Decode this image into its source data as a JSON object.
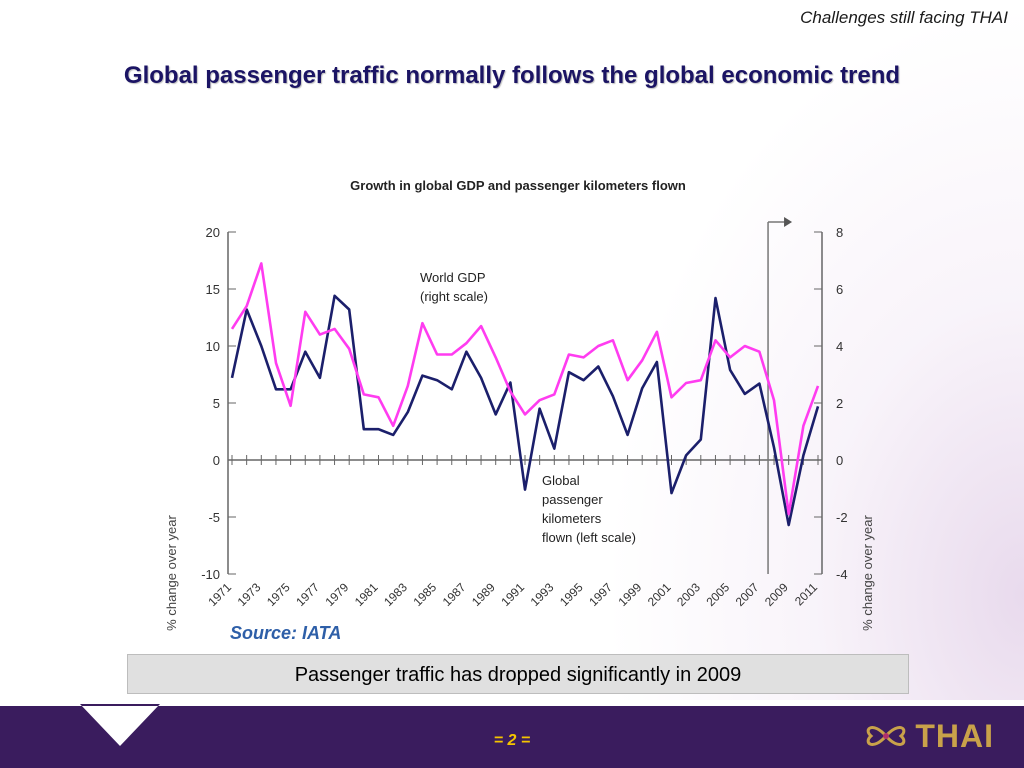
{
  "header": {
    "note": "Challenges still facing THAI",
    "title": "Global passenger traffic normally follows the global economic trend"
  },
  "chart_data": {
    "type": "line",
    "title": "Growth in global GDP and passenger kilometers flown",
    "ylabel_left": "% change over year",
    "ylabel_right": "% change over year",
    "ylim_left": [
      -10,
      20
    ],
    "ylim_right": [
      -4,
      8
    ],
    "yticks_left": [
      "20",
      "15",
      "10",
      "5",
      "0",
      "-5",
      "-10"
    ],
    "yticks_right": [
      "8",
      "6",
      "4",
      "2",
      "0",
      "-2",
      "-4"
    ],
    "x": [
      1971,
      1972,
      1973,
      1974,
      1975,
      1976,
      1977,
      1978,
      1979,
      1980,
      1981,
      1982,
      1983,
      1984,
      1985,
      1986,
      1987,
      1988,
      1989,
      1990,
      1991,
      1992,
      1993,
      1994,
      1995,
      1996,
      1997,
      1998,
      1999,
      2000,
      2001,
      2002,
      2003,
      2004,
      2005,
      2006,
      2007,
      2008,
      2009,
      2010,
      2011
    ],
    "xtick_labels": [
      "1971",
      "1973",
      "1975",
      "1977",
      "1979",
      "1981",
      "1983",
      "1985",
      "1987",
      "1989",
      "1991",
      "1993",
      "1995",
      "1997",
      "1999",
      "2001",
      "2003",
      "2005",
      "2007",
      "2009",
      "2011"
    ],
    "series": [
      {
        "name": "Global passenger kilometers flown (left scale)",
        "axis": "left",
        "color": "#1b1f6b",
        "values": [
          7.2,
          13.2,
          10.0,
          6.2,
          6.2,
          9.5,
          7.2,
          14.4,
          13.2,
          2.7,
          2.7,
          2.2,
          4.2,
          7.4,
          7.0,
          6.2,
          9.5,
          7.2,
          4.0,
          6.8,
          -2.6,
          4.5,
          1.0,
          7.7,
          7.0,
          8.2,
          5.6,
          2.2,
          6.3,
          8.6,
          -2.9,
          0.4,
          1.8,
          14.2,
          7.9,
          5.8,
          6.7,
          1.1,
          -5.7,
          0.4,
          4.7
        ]
      },
      {
        "name": "World GDP (right scale)",
        "axis": "right",
        "color": "#ff3cf0",
        "values": [
          4.6,
          5.4,
          6.9,
          3.4,
          1.9,
          5.2,
          4.4,
          4.6,
          3.9,
          2.3,
          2.2,
          1.2,
          2.6,
          4.8,
          3.7,
          3.7,
          4.1,
          4.7,
          3.6,
          2.4,
          1.6,
          2.1,
          2.3,
          3.7,
          3.6,
          4.0,
          4.2,
          2.8,
          3.5,
          4.5,
          2.2,
          2.7,
          2.8,
          4.2,
          3.6,
          4.0,
          3.8,
          2.1,
          -1.9,
          1.2,
          2.6
        ]
      }
    ],
    "annotations": {
      "gdp_label_line1": "World GDP",
      "gdp_label_line2": "(right scale)",
      "pax_label_line1": "Global",
      "pax_label_line2": "passenger",
      "pax_label_line3": "kilometers",
      "pax_label_line4": "flown (left scale)"
    },
    "grid": false
  },
  "source": "Source: IATA",
  "caption": "Passenger traffic has dropped significantly in 2009",
  "footer": {
    "page_number": "= 2 =",
    "logo_text": "THAI",
    "colors": {
      "footer_bg": "#3a1c5e",
      "page_number": "#f5c400",
      "logo": "#c9a24a"
    }
  }
}
